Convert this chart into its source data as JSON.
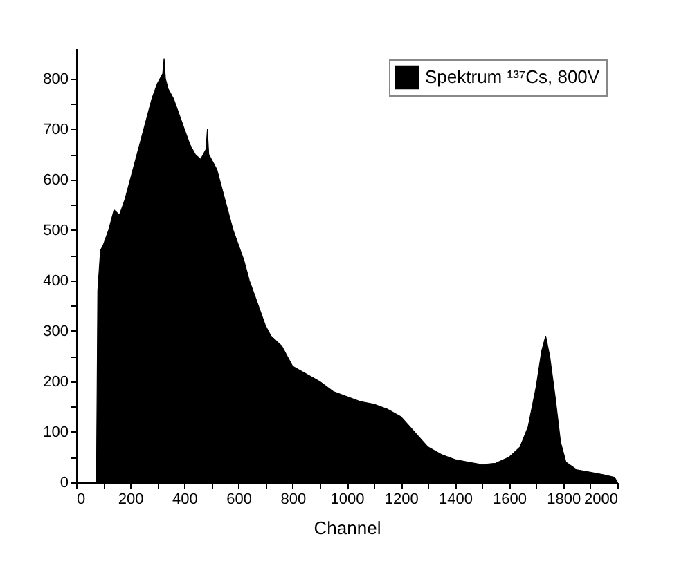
{
  "chart_data": {
    "type": "area",
    "xlabel": "Channel",
    "legend": "top right",
    "grid": false,
    "xlim": [
      0,
      2000
    ],
    "ylim": [
      0,
      860
    ],
    "xticks": [
      0,
      {
        "value": 100,
        "label": null
      },
      200,
      {
        "value": 300,
        "label": null
      },
      400,
      {
        "value": 500,
        "label": null
      },
      600,
      {
        "value": 700,
        "label": null
      },
      800,
      {
        "value": 900,
        "label": null
      },
      1000,
      {
        "value": 1100,
        "label": null
      },
      1200,
      {
        "value": 1300,
        "label": null
      },
      1400,
      {
        "value": 1500,
        "label": null
      },
      1600,
      {
        "value": 1700,
        "label": null
      },
      1800,
      {
        "value": 1900,
        "label": null
      },
      2000
    ],
    "yticks": [
      0,
      {
        "value": 50,
        "label": null
      },
      100,
      {
        "value": 150,
        "label": null
      },
      200,
      {
        "value": 250,
        "label": null
      },
      300,
      {
        "value": 350,
        "label": null
      },
      400,
      {
        "value": 450,
        "label": null
      },
      500,
      {
        "value": 550,
        "label": null
      },
      600,
      {
        "value": 650,
        "label": null
      },
      700,
      {
        "value": 750,
        "label": null
      },
      800
    ],
    "x": [
      0,
      70,
      75,
      80,
      90,
      100,
      120,
      140,
      160,
      180,
      200,
      220,
      240,
      260,
      280,
      300,
      320,
      325,
      330,
      340,
      360,
      380,
      400,
      420,
      440,
      460,
      480,
      485,
      490,
      500,
      520,
      540,
      560,
      580,
      600,
      620,
      640,
      660,
      680,
      700,
      720,
      740,
      760,
      780,
      800,
      850,
      900,
      950,
      1000,
      1050,
      1100,
      1150,
      1200,
      1250,
      1300,
      1350,
      1400,
      1450,
      1500,
      1550,
      1600,
      1640,
      1670,
      1700,
      1720,
      1735,
      1750,
      1770,
      1790,
      1810,
      1850,
      1900,
      1950,
      1990,
      2000
    ],
    "series": [
      {
        "name": "Spektrum ¹³⁷Cs, 800V",
        "color": "#000000",
        "values": [
          0,
          0,
          0,
          380,
          460,
          470,
          500,
          540,
          530,
          560,
          600,
          640,
          680,
          720,
          760,
          790,
          810,
          840,
          800,
          780,
          760,
          730,
          700,
          670,
          650,
          640,
          660,
          700,
          650,
          640,
          620,
          580,
          540,
          500,
          470,
          440,
          400,
          370,
          340,
          310,
          290,
          280,
          270,
          250,
          230,
          215,
          200,
          180,
          170,
          160,
          155,
          145,
          130,
          100,
          70,
          55,
          45,
          40,
          35,
          38,
          50,
          70,
          110,
          190,
          260,
          290,
          250,
          170,
          80,
          40,
          25,
          20,
          15,
          10,
          0
        ]
      }
    ]
  }
}
